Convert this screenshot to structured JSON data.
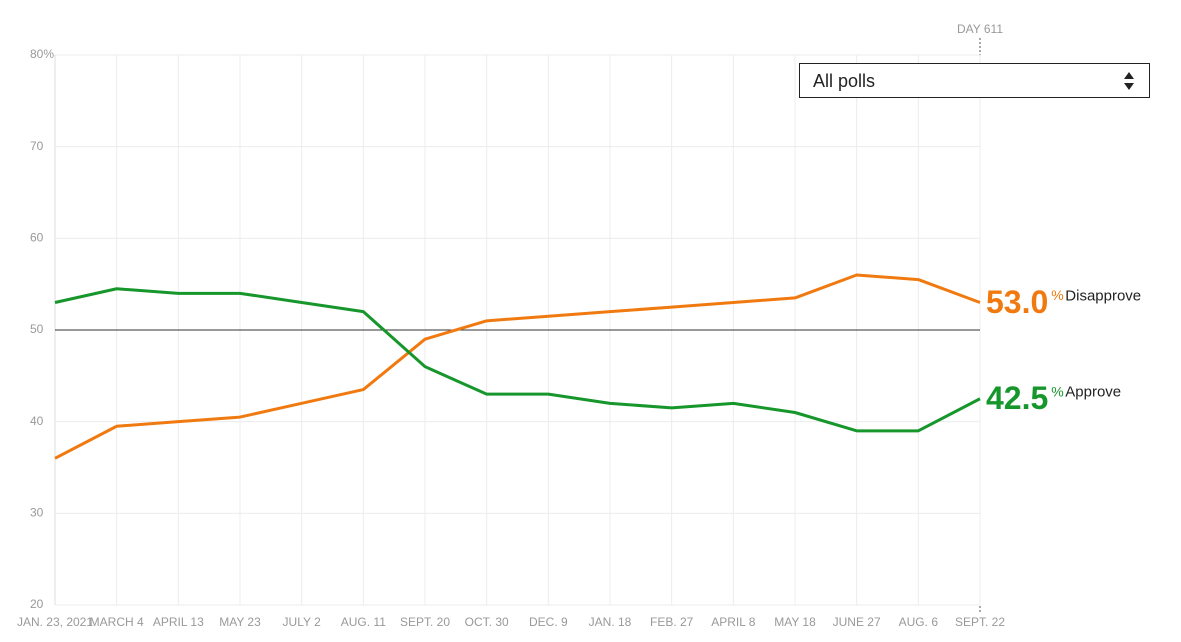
{
  "chart_data": {
    "type": "line",
    "categories": [
      "JAN. 23, 2021",
      "MARCH 4",
      "APRIL 13",
      "MAY 23",
      "JULY 2",
      "AUG. 11",
      "SEPT. 20",
      "OCT. 30",
      "DEC. 9",
      "JAN. 18",
      "FEB. 27",
      "APRIL 8",
      "MAY 18",
      "JUNE 27",
      "AUG. 6",
      "SEPT. 22"
    ],
    "series": [
      {
        "name": "Disapprove",
        "color": "#f07a10",
        "values": [
          36,
          39.5,
          40,
          40.5,
          42,
          43.5,
          49,
          51,
          51.5,
          52,
          52.5,
          53,
          53.5,
          56,
          55.5,
          53
        ],
        "value_labels": [
          null,
          null,
          null,
          null,
          null,
          null,
          null,
          null,
          null,
          null,
          null,
          null,
          null,
          null,
          null,
          "53.0"
        ]
      },
      {
        "name": "Approve",
        "color": "#17962b",
        "values": [
          53,
          54.5,
          54,
          54,
          53,
          52,
          46,
          43,
          43,
          42,
          41.5,
          42,
          41,
          39,
          39,
          42.5
        ],
        "value_labels": [
          null,
          null,
          null,
          null,
          null,
          null,
          null,
          null,
          null,
          null,
          null,
          null,
          null,
          null,
          null,
          "42.5"
        ]
      }
    ],
    "unit_symbol": "%",
    "ylim": [
      20,
      80
    ],
    "yticks": [
      20,
      30,
      40,
      50,
      60,
      70,
      {
        "value": 80,
        "label": "80%"
      }
    ],
    "reference_line": 50,
    "grid": true,
    "current_day_label": "DAY 611",
    "poll_filter": "All polls"
  }
}
